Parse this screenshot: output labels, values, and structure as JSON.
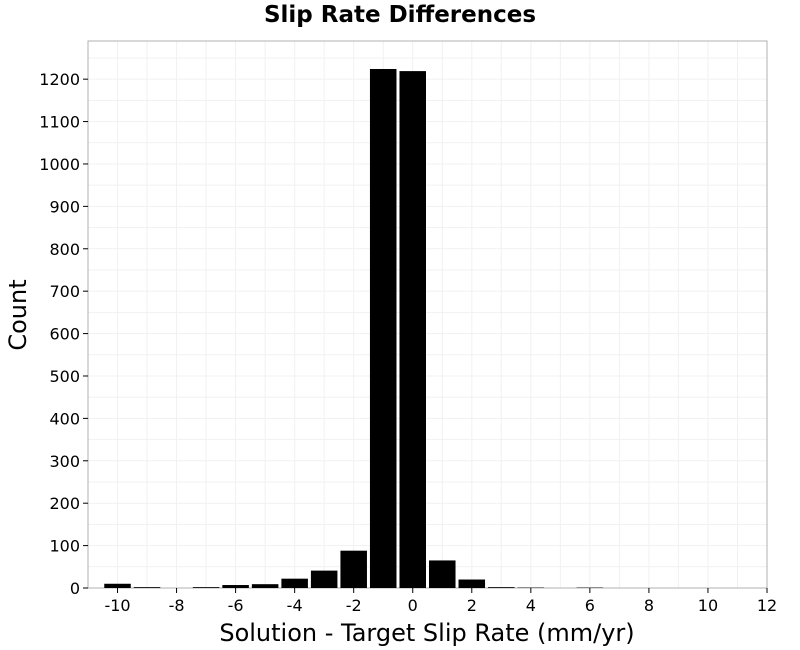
{
  "chart_data": {
    "type": "bar",
    "title": "Slip Rate Differences",
    "xlabel": "Solution - Target Slip Rate (mm/yr)",
    "ylabel": "Count",
    "xlim": [
      -11,
      12
    ],
    "ylim": [
      0,
      1290
    ],
    "xticks": [
      -10,
      -8,
      -6,
      -4,
      -2,
      0,
      2,
      4,
      6,
      8,
      10,
      12
    ],
    "yticks": [
      0,
      100,
      200,
      300,
      400,
      500,
      600,
      700,
      800,
      900,
      1000,
      1100,
      1200
    ],
    "bin_width": 1,
    "bins": [
      {
        "x": -10,
        "count": 10
      },
      {
        "x": -9,
        "count": 2
      },
      {
        "x": -8,
        "count": 0
      },
      {
        "x": -7,
        "count": 2
      },
      {
        "x": -6,
        "count": 7
      },
      {
        "x": -5,
        "count": 9
      },
      {
        "x": -4,
        "count": 22
      },
      {
        "x": -3,
        "count": 41
      },
      {
        "x": -2,
        "count": 88
      },
      {
        "x": -1,
        "count": 1224
      },
      {
        "x": 0,
        "count": 1219
      },
      {
        "x": 1,
        "count": 65
      },
      {
        "x": 2,
        "count": 20
      },
      {
        "x": 3,
        "count": 2
      },
      {
        "x": 4,
        "count": 1
      },
      {
        "x": 5,
        "count": 0
      },
      {
        "x": 6,
        "count": 1
      }
    ],
    "bar_color": "#000000",
    "grid": true
  }
}
